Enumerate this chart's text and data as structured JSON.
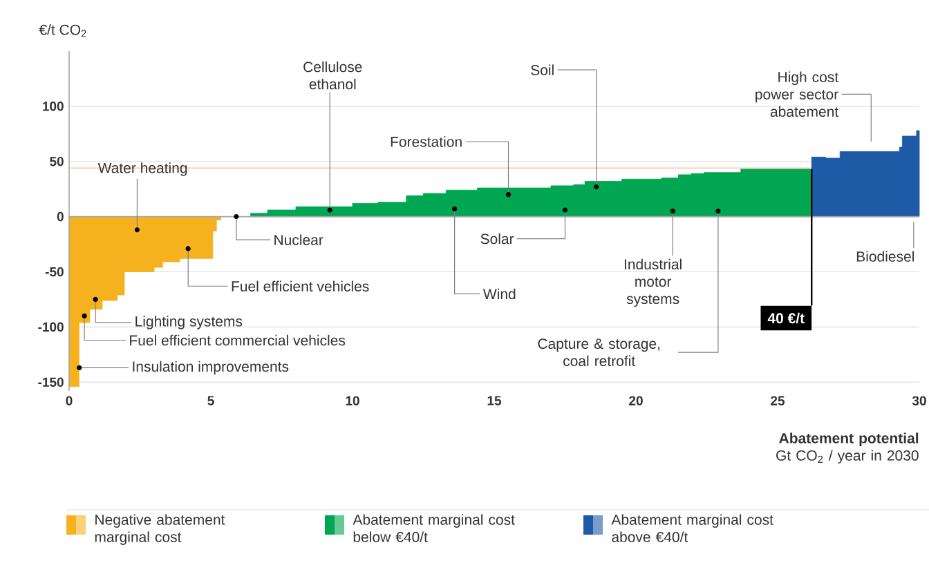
{
  "chart_data": {
    "type": "area",
    "ylabel": "€/t CO$_{2}$",
    "xlabel": "**Abatement potential** Gt CO$_{2}$ / year in 2030",
    "xlim": [
      0,
      30
    ],
    "ylim": [
      -158,
      150
    ],
    "xticks": [
      0,
      5,
      10,
      15,
      20,
      25,
      30
    ],
    "yticks": [
      -150,
      -100,
      -50,
      0,
      50,
      100
    ],
    "grid": "y",
    "legend": "bottom",
    "series": [
      {
        "name": "Negative abatement marginal cost",
        "color": "#f5b21e",
        "x": [
          0,
          0.35,
          0.35,
          0.73,
          0.73,
          1.17,
          1.17,
          1.7,
          1.7,
          1.95,
          1.95,
          3.0,
          3.0,
          3.3,
          3.3,
          3.9,
          3.9,
          5.07,
          5.07,
          5.2,
          5.2,
          5.35
        ],
        "values": [
          -154,
          -154,
          -96,
          -96,
          -84,
          -84,
          -76,
          -76,
          -71,
          -71,
          -50,
          -50,
          -46,
          -46,
          -41,
          -41,
          -38,
          -38,
          -13,
          -13,
          -3,
          -3
        ]
      },
      {
        "name": "Abatement marginal cost below €40/t",
        "color": "#00a651",
        "x": [
          6.4,
          7.0,
          7.0,
          8.0,
          8.0,
          10.0,
          10.0,
          10.9,
          10.9,
          11.9,
          11.9,
          12.5,
          12.5,
          13.3,
          13.3,
          14.4,
          14.4,
          17.0,
          17.0,
          17.8,
          17.8,
          18.2,
          18.2,
          19.5,
          19.5,
          20.9,
          20.9,
          21.5,
          21.5,
          21.95,
          21.95,
          22.4,
          22.4,
          23.7,
          23.7,
          26.2
        ],
        "values": [
          3,
          3,
          6,
          6,
          9,
          9,
          12,
          12,
          13,
          13,
          19,
          19,
          21,
          21,
          24,
          24,
          26,
          26,
          28,
          28,
          29,
          29,
          32,
          32,
          34,
          34,
          35,
          35,
          38,
          38,
          39,
          39,
          40,
          40,
          43,
          43
        ]
      },
      {
        "name": "Abatement marginal cost above €40/t",
        "color": "#1f5aa6",
        "x": [
          26.2,
          26.7,
          26.7,
          27.2,
          27.2,
          29.3,
          29.3,
          29.4,
          29.4,
          29.9,
          29.9,
          30
        ],
        "values": [
          54,
          54,
          53,
          53,
          59,
          59,
          63,
          63,
          73,
          73,
          78,
          78
        ]
      }
    ],
    "ref_lines": [
      {
        "axis": "y",
        "value": 44,
        "color": "#f7c9a0"
      }
    ],
    "annotations": [
      {
        "text": "Water heating",
        "x": 2.4,
        "y": -12
      },
      {
        "text": "Insulation improvements",
        "x": 0.36,
        "y": -137
      },
      {
        "text": "Fuel efficient commercial vehicles",
        "x": 0.54,
        "y": -90
      },
      {
        "text": "Lighting systems",
        "x": 0.93,
        "y": -75
      },
      {
        "text": "Fuel efficient vehicles",
        "x": 4.2,
        "y": -29
      },
      {
        "text": "Nuclear",
        "x": 5.9,
        "y": 0
      },
      {
        "text": "Cellulose ethanol",
        "x": 9.2,
        "y": 6
      },
      {
        "text": "Wind",
        "x": 13.6,
        "y": 7
      },
      {
        "text": "Forestation",
        "x": 15.5,
        "y": 20
      },
      {
        "text": "Solar",
        "x": 17.5,
        "y": 6
      },
      {
        "text": "Soil",
        "x": 18.6,
        "y": 27
      },
      {
        "text": "Industrial motor systems",
        "x": 21.3,
        "y": 5
      },
      {
        "text": "Capture & storage, coal retrofit",
        "x": 22.9,
        "y": 5
      },
      {
        "text": "40 €/t",
        "x": 26.2,
        "y": 43
      },
      "High cost power sector abatement",
      "Biodiesel"
    ]
  }
}
